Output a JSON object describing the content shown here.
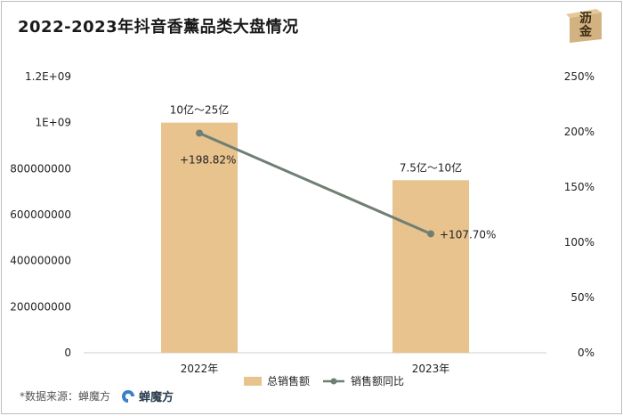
{
  "title": "2022-2023年抖音香薰品类大盘情况",
  "logo_text": [
    "沥",
    "金"
  ],
  "footer": {
    "source": "*数据来源：蝉魔方",
    "brand": "蝉魔方"
  },
  "colors": {
    "bar": "#e8c38e",
    "line": "#6f7f74",
    "axis": "#cfcfcf"
  },
  "chart_data": {
    "type": "bar",
    "categories": [
      "2022年",
      "2023年"
    ],
    "series": [
      {
        "name": "总销售额",
        "type": "bar",
        "axis": "left",
        "values": [
          1000000000,
          750000000
        ],
        "data_labels": [
          "10亿～25亿",
          "7.5亿～10亿"
        ]
      },
      {
        "name": "销售额同比",
        "type": "line",
        "axis": "right",
        "values": [
          198.82,
          107.7
        ],
        "data_labels": [
          "+198.82%",
          "+107.70%"
        ]
      }
    ],
    "left_axis": {
      "ylim": [
        0,
        1200000000
      ],
      "ticks": [
        0,
        200000000,
        400000000,
        600000000,
        800000000,
        1000000000,
        1200000000
      ],
      "tick_labels": [
        "0",
        "200000000",
        "400000000",
        "600000000",
        "800000000",
        "1E+09",
        "1.2E+09"
      ]
    },
    "right_axis": {
      "ylim": [
        0,
        250
      ],
      "ticks": [
        0,
        50,
        100,
        150,
        200,
        250
      ],
      "tick_labels": [
        "0%",
        "50%",
        "100%",
        "150%",
        "200%",
        "250%"
      ]
    },
    "grid": false,
    "legend_position": "bottom"
  }
}
